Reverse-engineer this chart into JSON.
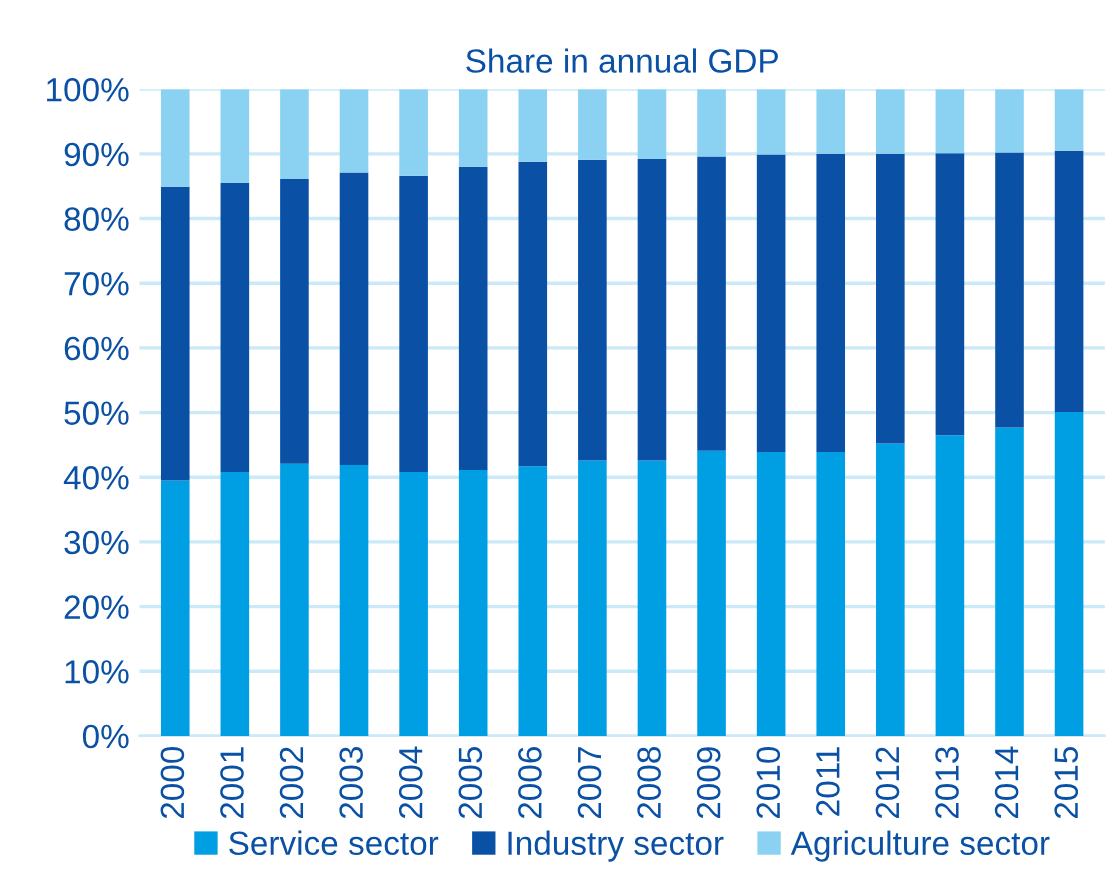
{
  "chart_data": {
    "type": "bar",
    "title": "Share in annual GDP",
    "stacked": true,
    "categories": [
      "2000",
      "2001",
      "2002",
      "2003",
      "2004",
      "2005",
      "2006",
      "2007",
      "2008",
      "2009",
      "2010",
      "2011",
      "2012",
      "2013",
      "2014",
      "2015"
    ],
    "series": [
      {
        "name": "Service sector",
        "color": "#009fe3",
        "values": [
          39.5,
          40.8,
          42.1,
          41.9,
          40.8,
          41.1,
          41.7,
          42.6,
          42.6,
          44.1,
          43.9,
          43.9,
          45.2,
          46.5,
          47.7,
          50.1
        ]
      },
      {
        "name": "Industry sector",
        "color": "#0a50a5",
        "values": [
          45.4,
          44.7,
          44.0,
          45.2,
          45.8,
          46.9,
          47.1,
          46.5,
          46.6,
          45.5,
          46.0,
          46.1,
          44.8,
          43.6,
          42.5,
          40.4
        ]
      },
      {
        "name": "Agriculture sector",
        "color": "#8bd1f2",
        "values": [
          15.1,
          14.5,
          13.9,
          12.9,
          13.4,
          12.0,
          11.2,
          10.9,
          10.8,
          10.4,
          10.1,
          10.0,
          10.0,
          9.9,
          9.8,
          9.5
        ]
      }
    ],
    "ylim": [
      0,
      100
    ],
    "yticks": [
      {
        "value": 0,
        "label": "0%"
      },
      {
        "value": 10,
        "label": "10%"
      },
      {
        "value": 20,
        "label": "20%"
      },
      {
        "value": 30,
        "label": "30%"
      },
      {
        "value": 40,
        "label": "40%"
      },
      {
        "value": 50,
        "label": "50%"
      },
      {
        "value": 60,
        "label": "60%"
      },
      {
        "value": 70,
        "label": "70%"
      },
      {
        "value": 80,
        "label": "80%"
      },
      {
        "value": 90,
        "label": "90%"
      },
      {
        "value": 100,
        "label": "100%"
      }
    ],
    "grid": "y",
    "legend": "bottom"
  }
}
